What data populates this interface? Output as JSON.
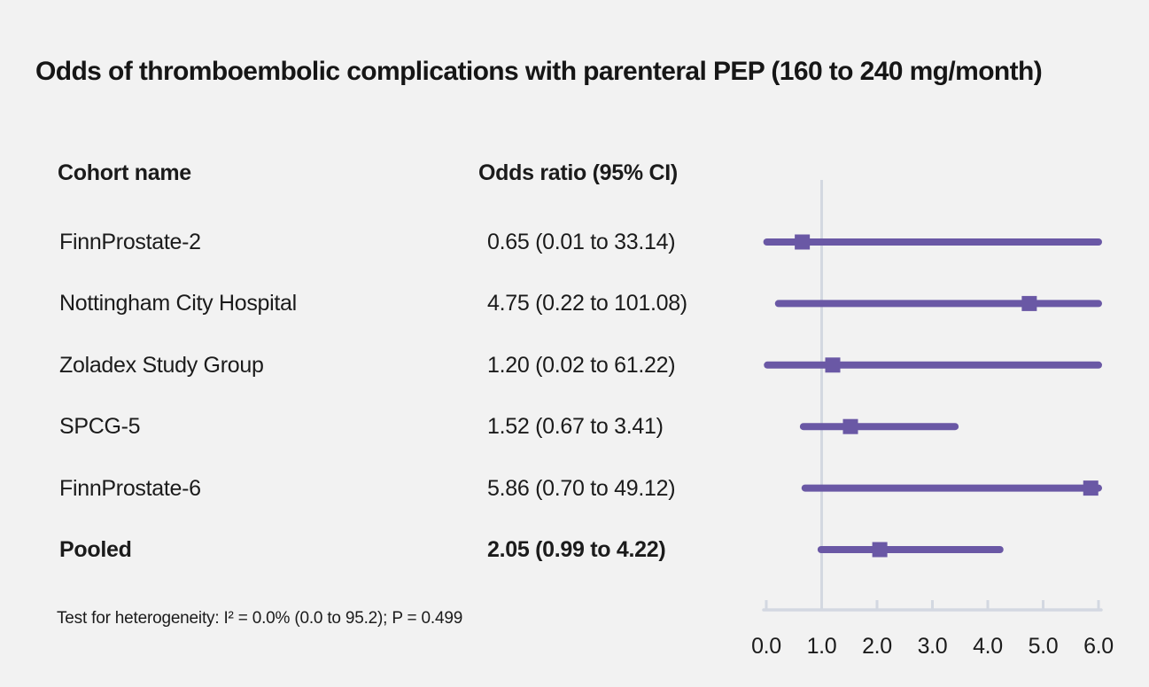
{
  "colors": {
    "purple": "#6a58a5",
    "axis_line": "#d3d8e1",
    "background": "#f2f2f2",
    "text": "#1b1b1b"
  },
  "chart_data": {
    "type": "forest",
    "title": "Odds of thromboembolic complications with parenteral PEP (160 to 240 mg/month)",
    "columns": {
      "cohort": "Cohort name",
      "or": "Odds ratio (95% CI)"
    },
    "rows": [
      {
        "label": "FinnProstate-2",
        "or_text": "0.65 (0.01 to 33.14)",
        "or": 0.65,
        "lo": 0.01,
        "hi": 33.14,
        "bold": false
      },
      {
        "label": "Nottingham City Hospital",
        "or_text": "4.75 (0.22 to 101.08)",
        "or": 4.75,
        "lo": 0.22,
        "hi": 101.08,
        "bold": false
      },
      {
        "label": "Zoladex Study Group",
        "or_text": "1.20 (0.02 to 61.22)",
        "or": 1.2,
        "lo": 0.02,
        "hi": 61.22,
        "bold": false
      },
      {
        "label": "SPCG-5",
        "or_text": "1.52 (0.67 to 3.41)",
        "or": 1.52,
        "lo": 0.67,
        "hi": 3.41,
        "bold": false
      },
      {
        "label": "FinnProstate-6",
        "or_text": "5.86 (0.70 to 49.12)",
        "or": 5.86,
        "lo": 0.7,
        "hi": 49.12,
        "bold": false
      },
      {
        "label": "Pooled",
        "or_text": "2.05 (0.99 to 4.22)",
        "or": 2.05,
        "lo": 0.99,
        "hi": 4.22,
        "bold": true
      }
    ],
    "x_axis": {
      "min": 0,
      "max": 6,
      "ticks": [
        "0.0",
        "1.0",
        "2.0",
        "3.0",
        "4.0",
        "5.0",
        "6.0"
      ],
      "reference_line": 1.0,
      "grid": false
    },
    "annotation": "Test for heterogeneity: I² = 0.0% (0.0 to 95.2); P = 0.499"
  }
}
